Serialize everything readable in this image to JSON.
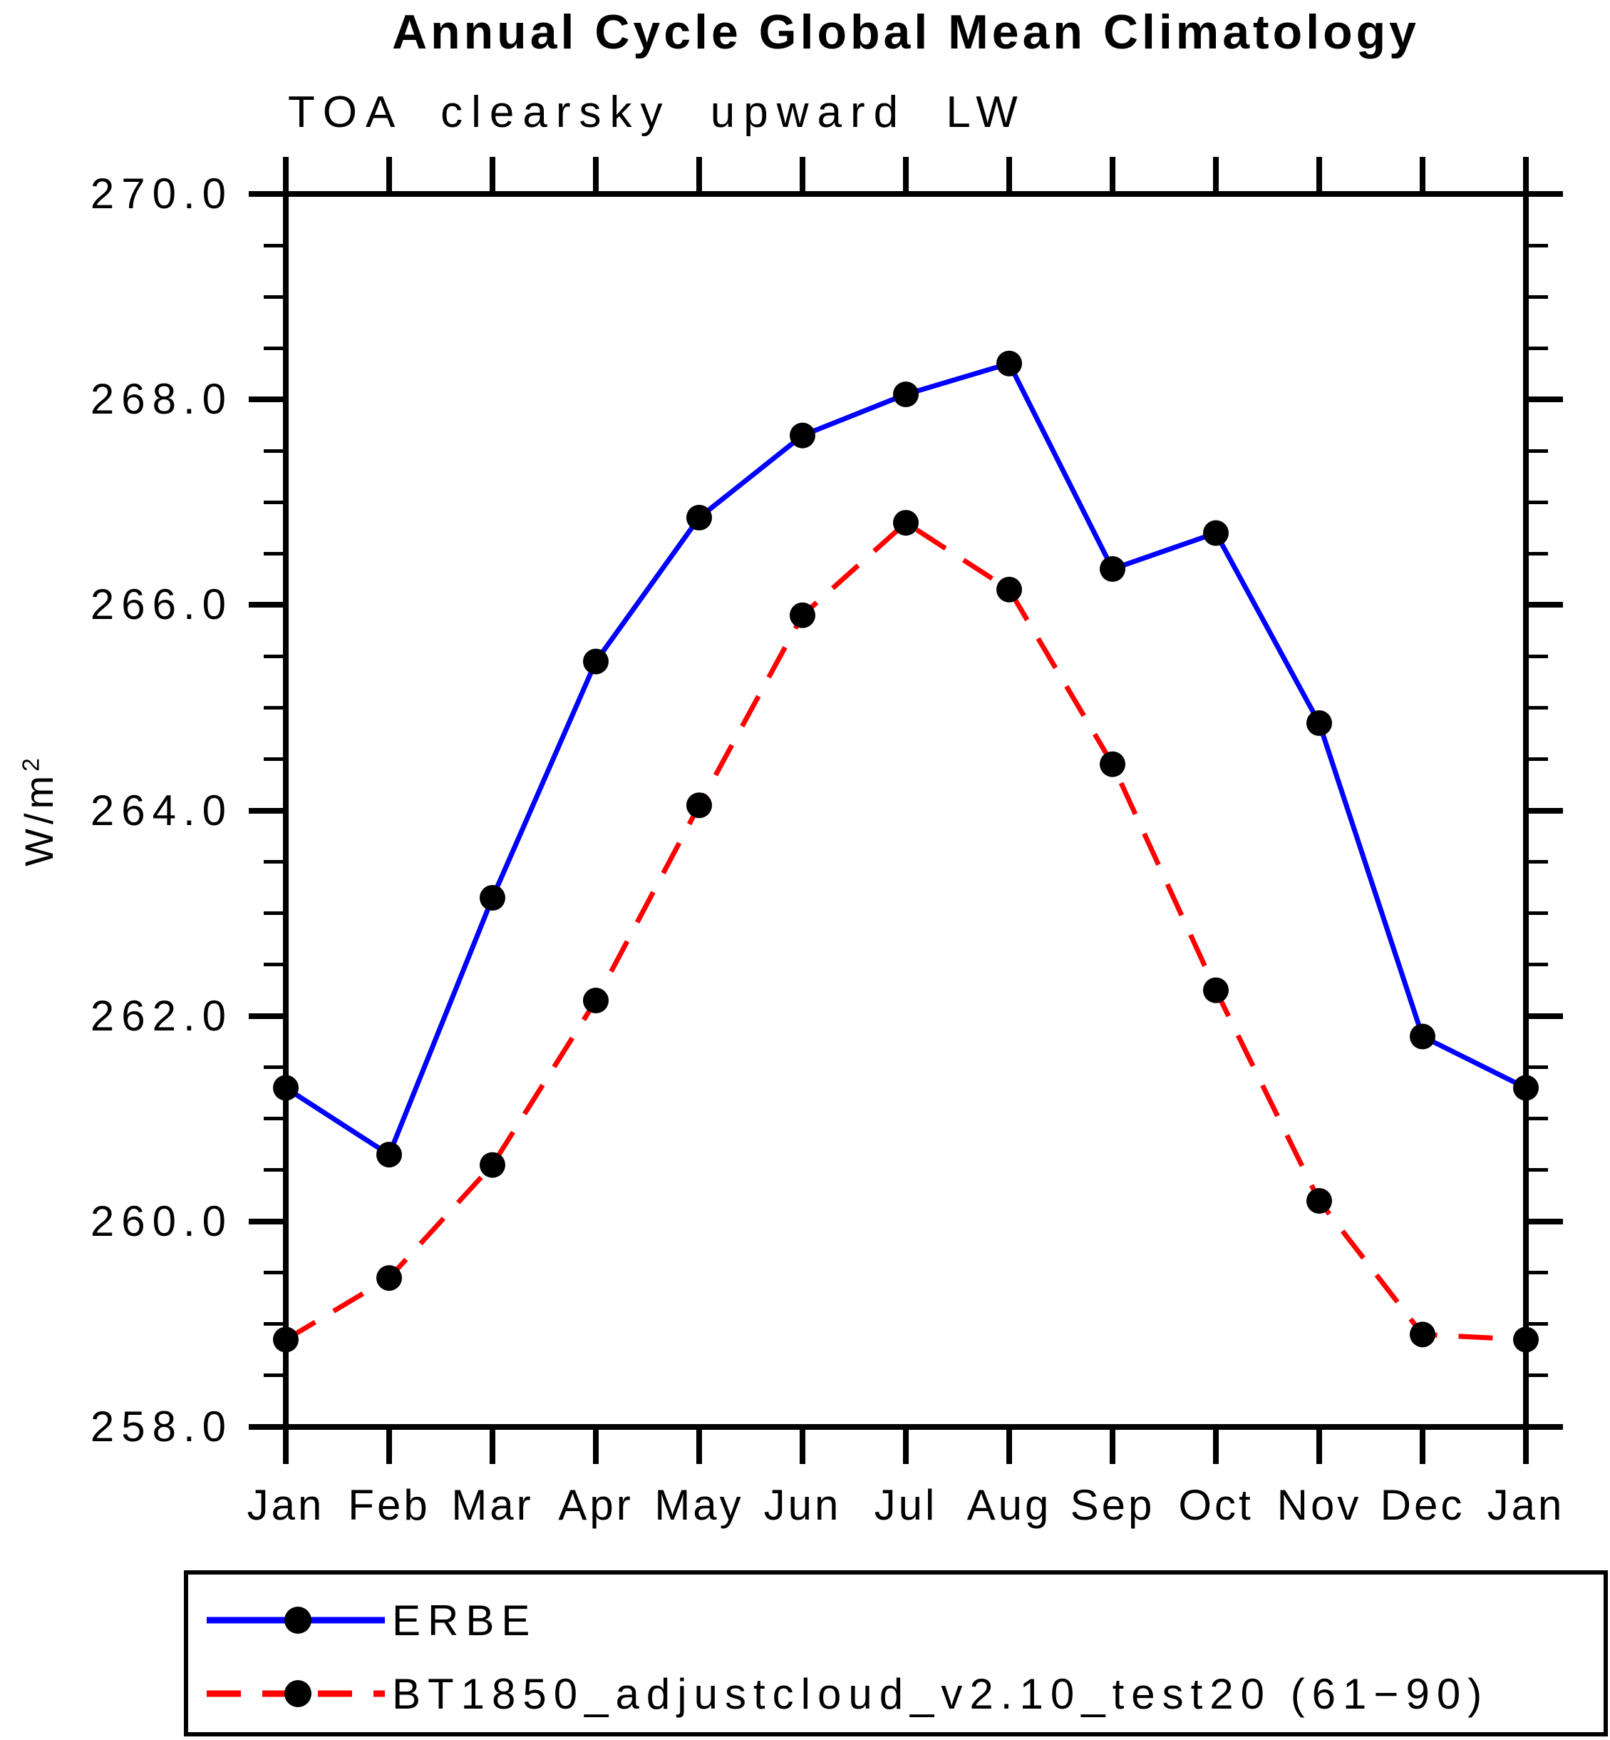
{
  "chart_data": {
    "type": "line",
    "title": "Annual Cycle Global Mean Climatology",
    "subtitle": "TOA clearsky upward LW",
    "ylabel": "W/m²",
    "ylabel_base": "W/m",
    "ylabel_sup": "2",
    "categories": [
      "Jan",
      "Feb",
      "Mar",
      "Apr",
      "May",
      "Jun",
      "Jul",
      "Aug",
      "Sep",
      "Oct",
      "Nov",
      "Dec",
      "Jan"
    ],
    "ylim": [
      258.0,
      270.0
    ],
    "y_major_step": 2.0,
    "y_minor_step": 0.5,
    "y_tick_labels": [
      "270.0",
      "268.0",
      "266.0",
      "264.0",
      "262.0",
      "260.0",
      "258.0"
    ],
    "grid": false,
    "legend_position": "bottom-left",
    "axis_color": "#000000",
    "marker_color": "#000000",
    "series": [
      {
        "name": "ERBE",
        "color": "#0000ff",
        "line_style": "solid",
        "marker": "circle",
        "marker_color": "#000000",
        "values": [
          261.3,
          260.65,
          263.15,
          265.45,
          266.85,
          267.65,
          268.05,
          268.35,
          266.35,
          266.7,
          264.85,
          261.8,
          261.3
        ]
      },
      {
        "name": "BT1850_adjustcloud_v2.10_test20 (61−90)",
        "color": "#ff0000",
        "line_style": "dashed",
        "marker": "circle",
        "marker_color": "#000000",
        "values": [
          258.85,
          259.45,
          260.55,
          262.15,
          264.05,
          265.9,
          266.8,
          266.15,
          264.45,
          262.25,
          260.2,
          258.9,
          258.85
        ]
      }
    ]
  },
  "legend": {
    "items": [
      {
        "label": "ERBE",
        "color": "#0000ff",
        "style": "solid",
        "marker": "black-dot"
      },
      {
        "label": "BT1850_adjustcloud_v2.10_test20 (61−90)",
        "color": "#ff0000",
        "style": "dashed",
        "marker": "black-dot"
      }
    ]
  }
}
